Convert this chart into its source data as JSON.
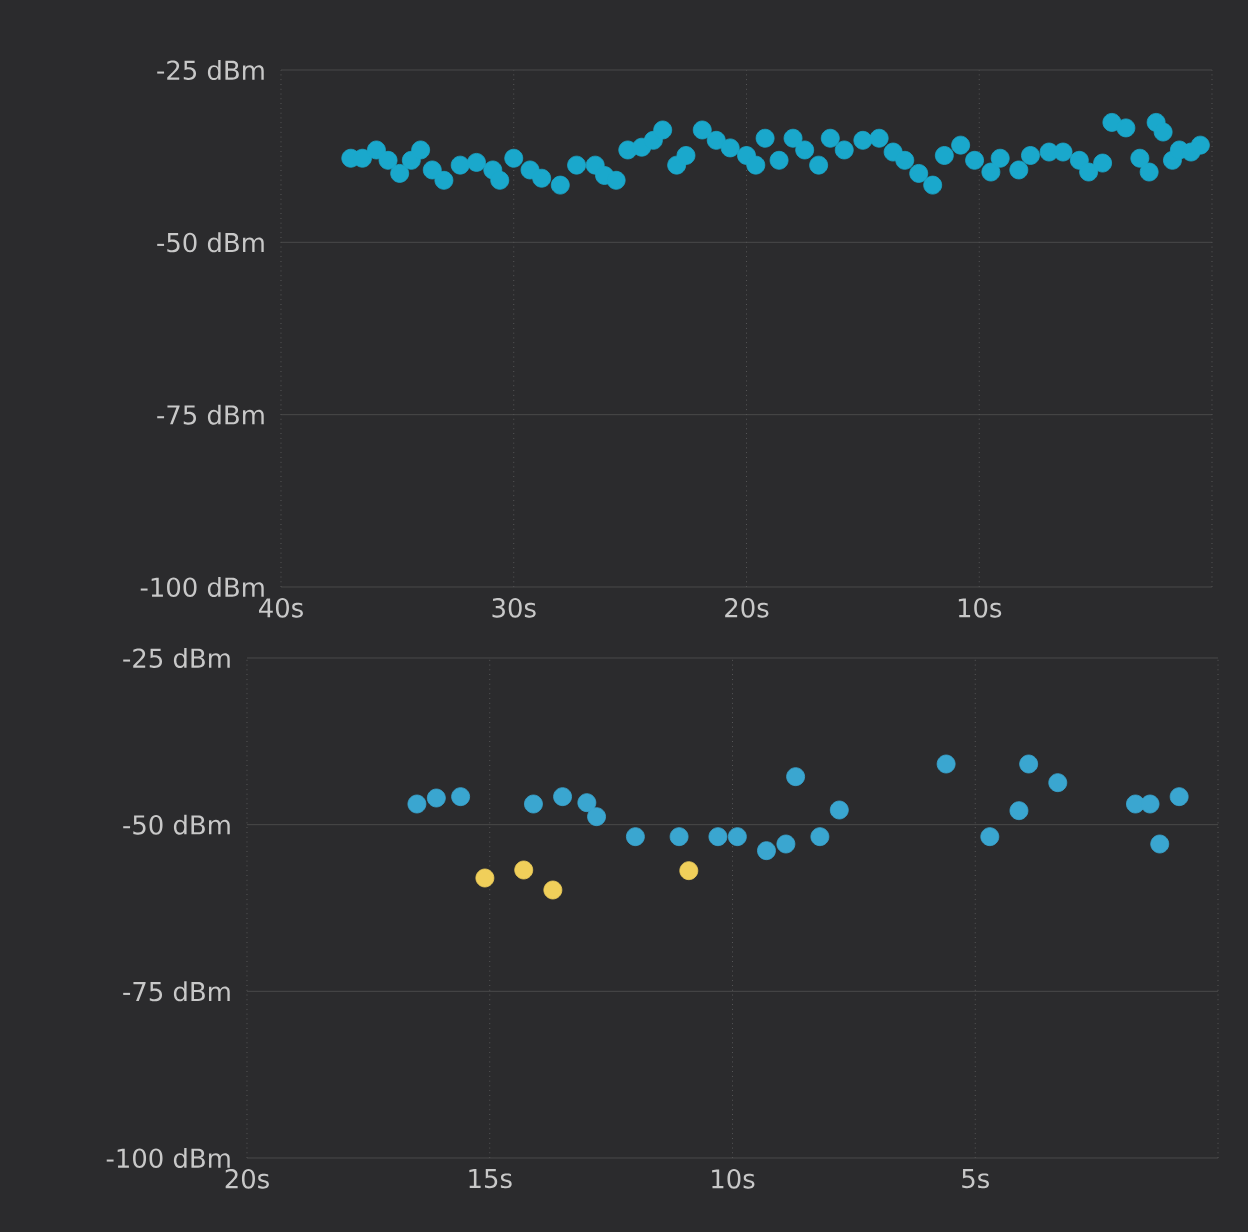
{
  "chart_data": [
    {
      "type": "scatter",
      "xlim": [
        40,
        0
      ],
      "ylim": [
        -100,
        -25
      ],
      "grid": true,
      "marker": "circle",
      "xticks": [
        {
          "value": 40,
          "label": "40s"
        },
        {
          "value": 30,
          "label": "30s"
        },
        {
          "value": 20,
          "label": "20s"
        },
        {
          "value": 10,
          "label": "10s"
        },
        {
          "value": 0,
          "label": null
        }
      ],
      "yticks": [
        {
          "value": -25,
          "label": "-25 dBm"
        },
        {
          "value": -50,
          "label": "-50 dBm"
        },
        {
          "value": -75,
          "label": "-75 dBm"
        },
        {
          "value": -100,
          "label": "-100 dBm"
        }
      ],
      "series": [
        {
          "color": "#1aa8cc",
          "x": [
            37.0,
            36.5,
            35.9,
            35.4,
            34.9,
            34.4,
            34.0,
            33.5,
            33.0,
            32.3,
            31.6,
            30.9,
            30.6,
            30.0,
            29.3,
            28.8,
            28.0,
            27.3,
            26.5,
            26.1,
            25.6,
            25.1,
            24.5,
            24.0,
            23.6,
            23.0,
            22.6,
            21.9,
            21.3,
            20.7,
            20.0,
            19.6,
            19.2,
            18.6,
            18.0,
            17.5,
            16.9,
            16.4,
            15.8,
            15.0,
            14.3,
            13.7,
            13.2,
            12.6,
            12.0,
            11.5,
            10.8,
            10.2,
            9.5,
            9.1,
            8.3,
            7.8,
            7.0,
            6.4,
            5.7,
            5.3,
            4.7,
            4.3,
            3.7,
            3.1,
            2.7,
            2.4,
            2.1,
            1.7,
            1.4,
            0.9,
            0.5
          ],
          "values": [
            -37.8,
            -37.8,
            -36.6,
            -38.1,
            -40.0,
            -38.1,
            -36.6,
            -39.5,
            -41.0,
            -38.8,
            -38.4,
            -39.5,
            -41.0,
            -37.8,
            -39.5,
            -40.7,
            -41.7,
            -38.8,
            -38.8,
            -40.3,
            -41.0,
            -36.6,
            -36.2,
            -35.2,
            -33.7,
            -38.8,
            -37.4,
            -33.7,
            -35.2,
            -36.3,
            -37.4,
            -38.8,
            -34.9,
            -38.1,
            -34.9,
            -36.6,
            -38.8,
            -34.9,
            -36.6,
            -35.2,
            -34.9,
            -36.9,
            -38.1,
            -40.0,
            -41.7,
            -37.4,
            -35.9,
            -38.1,
            -39.8,
            -37.8,
            -39.5,
            -37.4,
            -36.9,
            -36.9,
            -38.1,
            -39.8,
            -38.5,
            -32.6,
            -33.4,
            -37.8,
            -39.8,
            -32.6,
            -34.0,
            -38.1,
            -36.6,
            -36.9,
            -35.9
          ]
        }
      ]
    },
    {
      "type": "scatter",
      "xlim": [
        20,
        0
      ],
      "ylim": [
        -100,
        -25
      ],
      "grid": true,
      "marker": "circle",
      "xticks": [
        {
          "value": 20,
          "label": "20s"
        },
        {
          "value": 15,
          "label": "15s"
        },
        {
          "value": 10,
          "label": "10s"
        },
        {
          "value": 5,
          "label": "5s"
        },
        {
          "value": 0,
          "label": null
        }
      ],
      "yticks": [
        {
          "value": -25,
          "label": "-25 dBm"
        },
        {
          "value": -50,
          "label": "-50 dBm"
        },
        {
          "value": -75,
          "label": "-75 dBm"
        },
        {
          "value": -100,
          "label": "-100 dBm"
        }
      ],
      "series": [
        {
          "color": "#3aa6d0",
          "x": [
            16.5,
            16.1,
            15.6,
            14.1,
            13.5,
            13.0,
            12.8,
            12.0,
            11.1,
            10.3,
            9.9,
            9.3,
            8.9,
            8.7,
            8.2,
            7.8,
            5.6,
            4.7,
            4.1,
            3.9,
            3.3,
            1.7,
            1.4,
            1.2,
            0.8
          ],
          "values": [
            -46.9,
            -46.0,
            -45.8,
            -46.9,
            -45.8,
            -46.7,
            -48.8,
            -51.8,
            -51.8,
            -51.8,
            -51.8,
            -53.9,
            -52.9,
            -42.8,
            -51.8,
            -47.8,
            -40.9,
            -51.8,
            -47.9,
            -40.9,
            -43.7,
            -46.9,
            -46.9,
            -52.9,
            -45.8
          ]
        },
        {
          "color": "#f0cf5a",
          "x": [
            15.1,
            14.3,
            13.7,
            10.9
          ],
          "values": [
            -58.0,
            -56.8,
            -59.8,
            -56.9
          ]
        }
      ]
    }
  ]
}
